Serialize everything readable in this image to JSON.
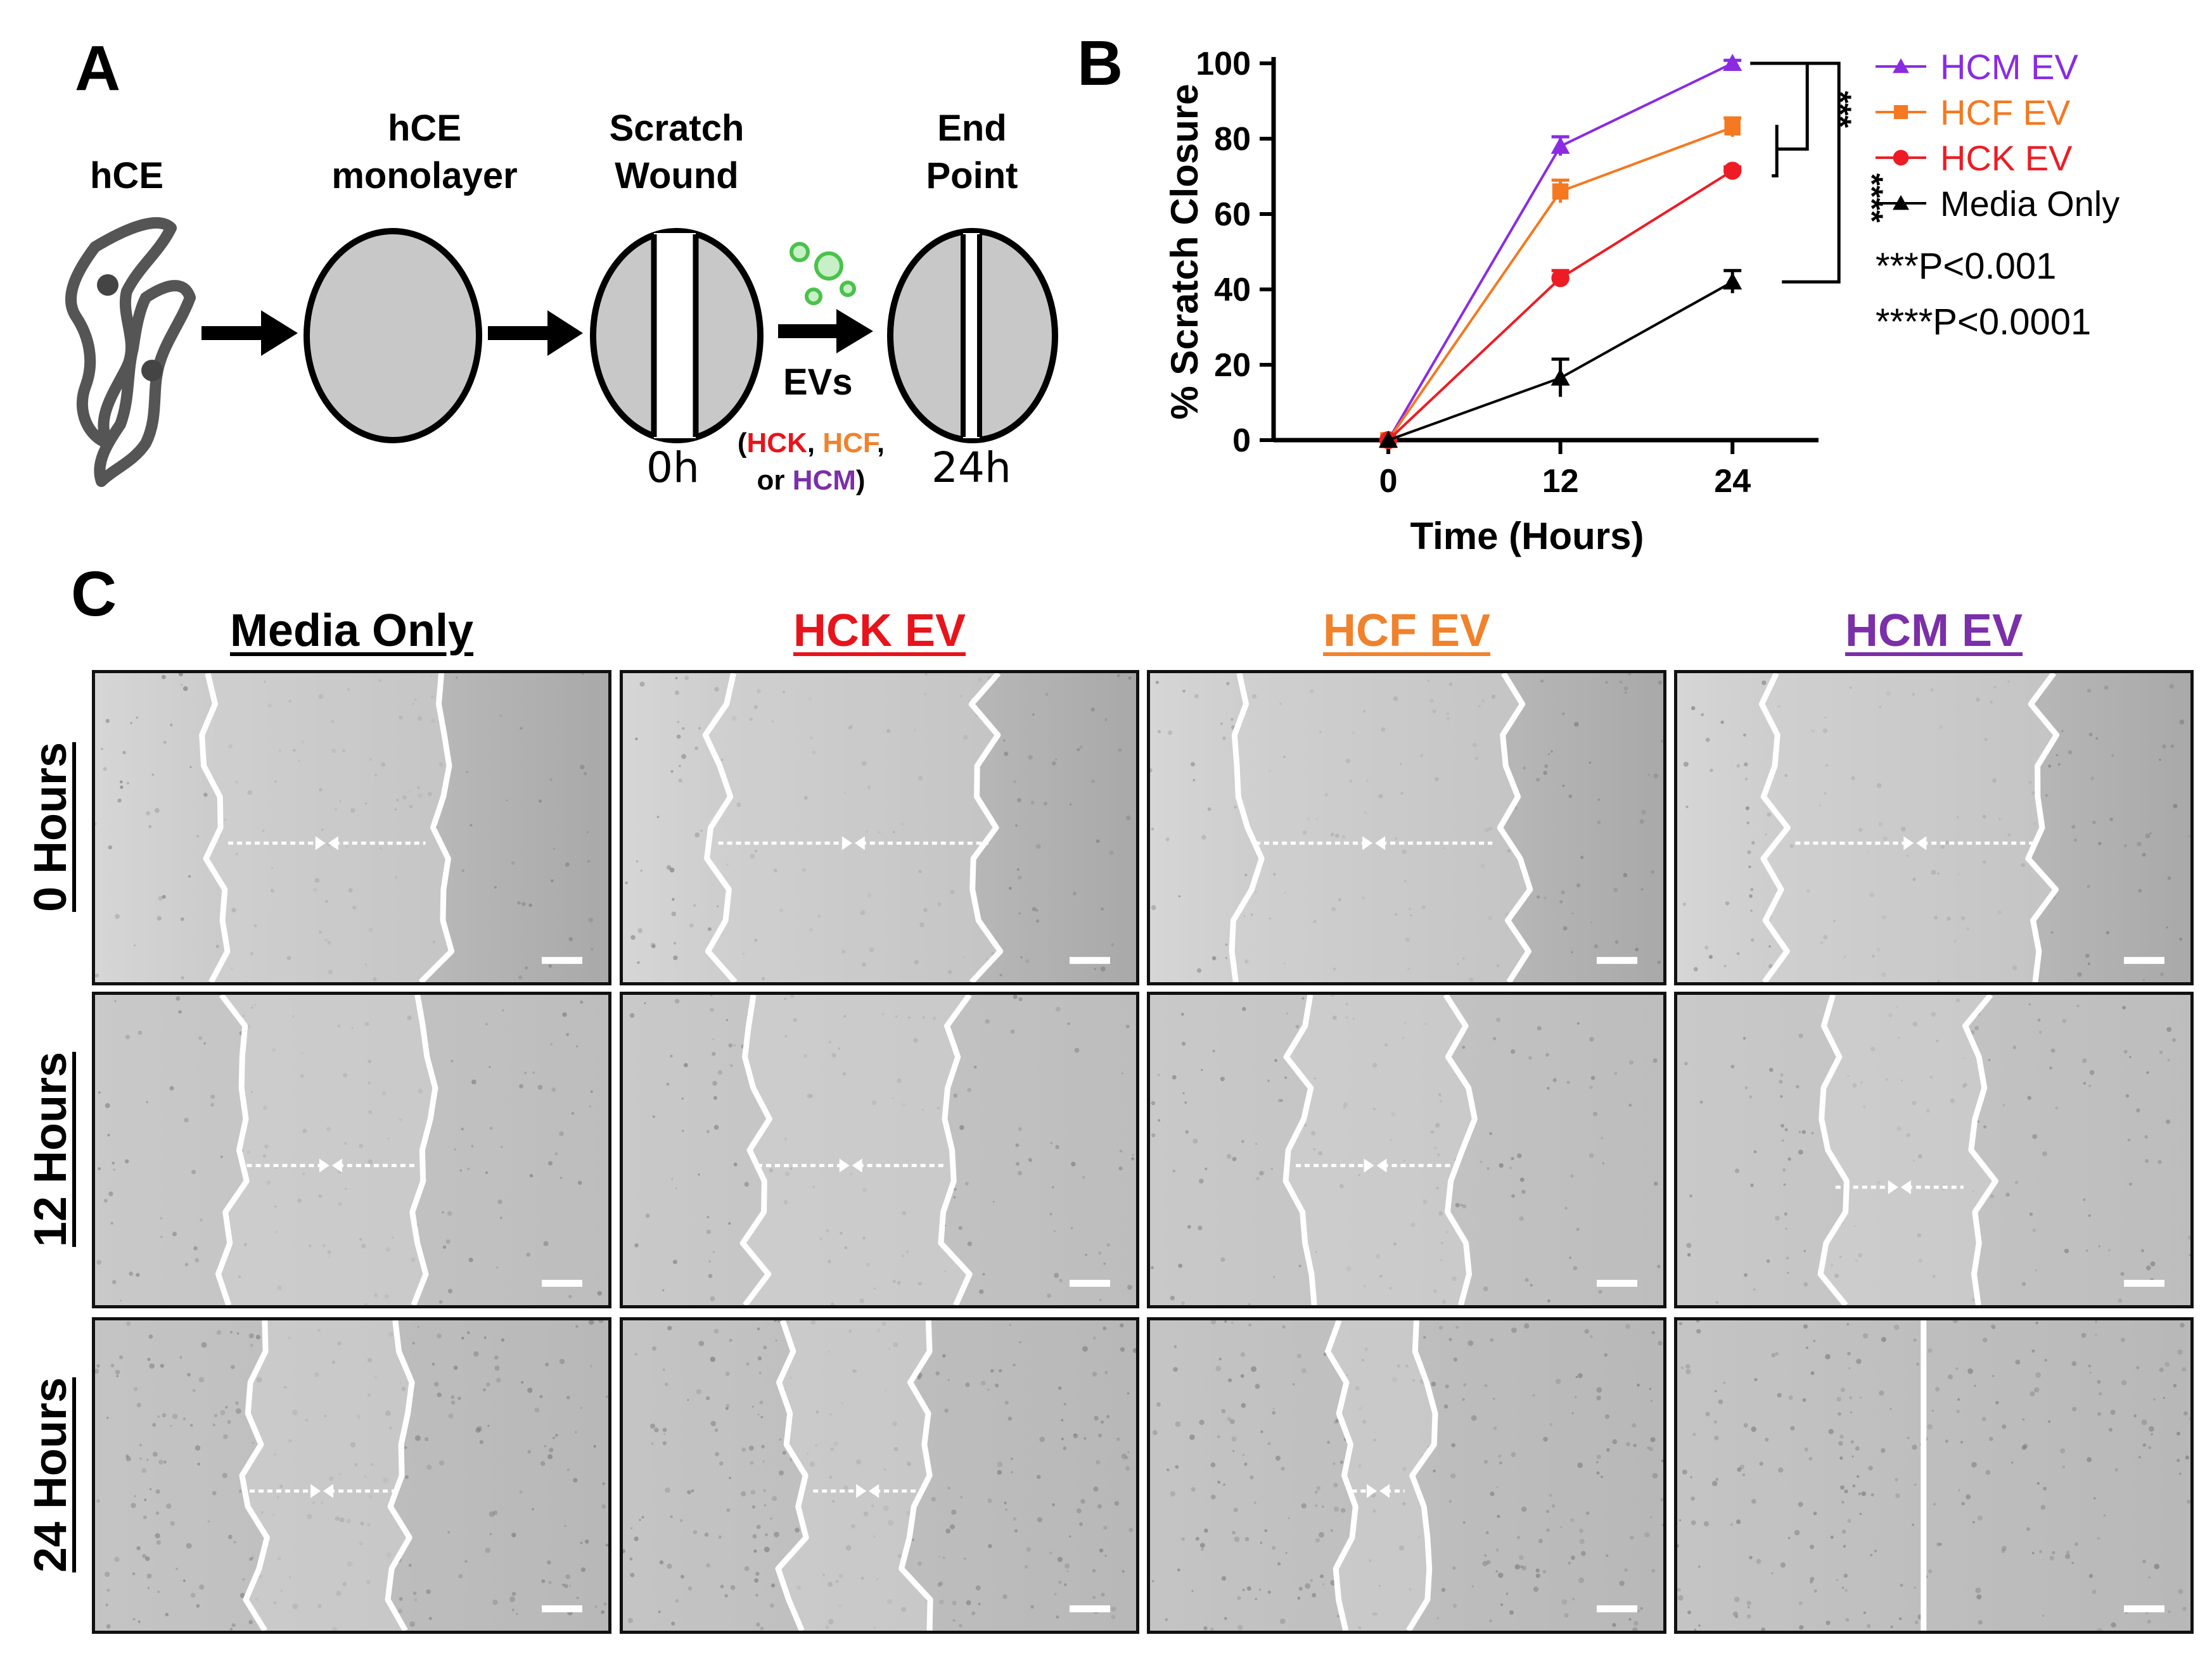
{
  "panels": {
    "a": "A",
    "b": "B",
    "c": "C"
  },
  "schematic": {
    "steps": [
      {
        "label": "hCE"
      },
      {
        "label": "hCE\nmonolayer"
      },
      {
        "label": "Scratch\nWound",
        "time": "0h"
      },
      {
        "label": "End\nPoint",
        "time": "24h"
      }
    ],
    "ev_label": "EVs",
    "ev_sources": {
      "open": "(",
      "hck": "HCK",
      "sep1": ", ",
      "hcf": "HCF",
      "sep2": ",",
      "or": "or ",
      "hcm": "HCM",
      "close": ")"
    },
    "colors": {
      "hck": "#e8141b",
      "hcf": "#f0822c",
      "hcm": "#7b2fa8",
      "cells": "#555555",
      "dish": "#c8c8c8",
      "ev_dots": "#4bc24b"
    }
  },
  "chart_data": {
    "type": "line",
    "ylabel": "% Scratch Closure",
    "xlabel": "Time (Hours)",
    "x": [
      0,
      12,
      24
    ],
    "xticks": [
      "0",
      "12",
      "24"
    ],
    "yticks": [
      "0",
      "20",
      "40",
      "60",
      "80",
      "100"
    ],
    "ylim": [
      0,
      100
    ],
    "legend_position": "right",
    "series": [
      {
        "name": "HCM EV",
        "color": "#8a2be2",
        "marker": "triangle",
        "values": [
          0,
          78,
          100
        ],
        "err": [
          0,
          2.5,
          0.8
        ]
      },
      {
        "name": "HCF EV",
        "color": "#f47920",
        "marker": "square",
        "values": [
          0,
          66,
          83
        ],
        "err": [
          0,
          3,
          2.5
        ]
      },
      {
        "name": "HCK EV",
        "color": "#ed1c24",
        "marker": "circle",
        "values": [
          0,
          43,
          71.5
        ],
        "err": [
          0,
          2,
          1
        ]
      },
      {
        "name": "Media Only",
        "color": "#000000",
        "marker": "triangle",
        "values": [
          0,
          16.5,
          42
        ],
        "err": [
          0,
          5,
          3
        ]
      }
    ],
    "significance": {
      "stars_3": "***",
      "stars_4": "****",
      "notes": [
        "***P<0.001",
        "****P<0.0001"
      ]
    }
  },
  "micrographs": {
    "columns": [
      {
        "label": "Media Only",
        "color": "#000000"
      },
      {
        "label": "HCK EV",
        "color": "#e8141b"
      },
      {
        "label": "HCF EV",
        "color": "#f0822c"
      },
      {
        "label": "HCM EV",
        "color": "#7b2fa8"
      }
    ],
    "rows": [
      {
        "label": "0 Hours"
      },
      {
        "label": "12 Hours"
      },
      {
        "label": "24 Hours"
      }
    ],
    "gap_widths": [
      [
        0.43,
        0.52,
        0.52,
        0.52
      ],
      [
        0.37,
        0.39,
        0.31,
        0.28
      ],
      [
        0.28,
        0.24,
        0.16,
        0.0
      ]
    ]
  }
}
